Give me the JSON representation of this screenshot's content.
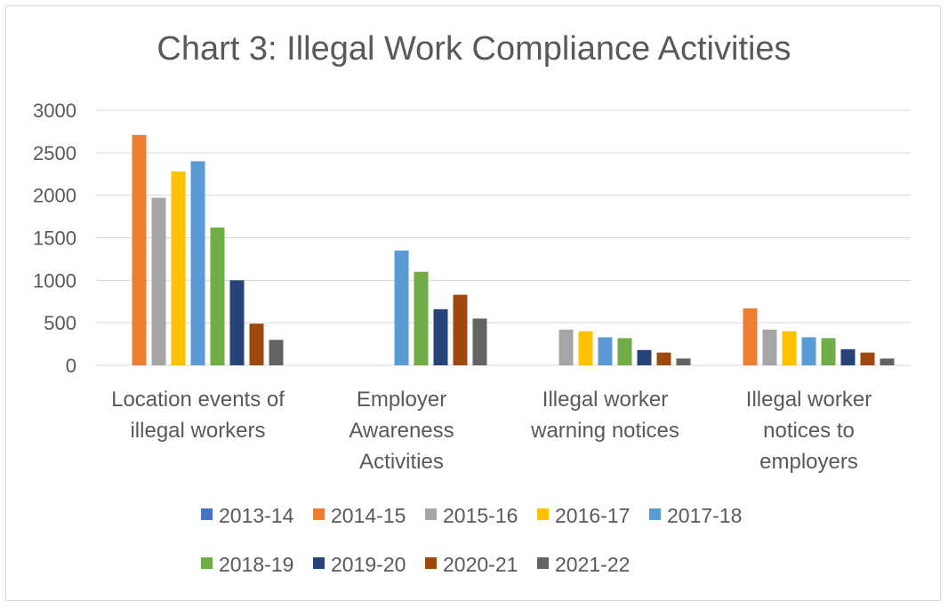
{
  "chart_data": {
    "type": "bar",
    "title": "Chart 3: Illegal Work Compliance Activities",
    "xlabel": "",
    "ylabel": "",
    "ylim": [
      0,
      3000
    ],
    "yticks": [
      0,
      500,
      1000,
      1500,
      2000,
      2500,
      3000
    ],
    "grid": true,
    "legend_position": "bottom",
    "categories": [
      [
        "Location events of",
        "illegal workers"
      ],
      [
        "Employer",
        "Awareness",
        "Activities"
      ],
      [
        "Illegal worker",
        "warning notices"
      ],
      [
        "Illegal worker",
        "notices to",
        "employers"
      ]
    ],
    "series": [
      {
        "name": "2013-14",
        "color": "#4472C4",
        "values": [
          0,
          0,
          0,
          0
        ]
      },
      {
        "name": "2014-15",
        "color": "#ED7D31",
        "values": [
          2710,
          0,
          0,
          670
        ]
      },
      {
        "name": "2015-16",
        "color": "#A5A5A5",
        "values": [
          1970,
          0,
          420,
          420
        ]
      },
      {
        "name": "2016-17",
        "color": "#FFC000",
        "values": [
          2280,
          0,
          400,
          400
        ]
      },
      {
        "name": "2017-18",
        "color": "#5B9BD5",
        "values": [
          2400,
          1350,
          330,
          330
        ]
      },
      {
        "name": "2018-19",
        "color": "#70AD47",
        "values": [
          1620,
          1100,
          320,
          320
        ]
      },
      {
        "name": "2019-20",
        "color": "#264478",
        "values": [
          1000,
          660,
          180,
          190
        ]
      },
      {
        "name": "2020-21",
        "color": "#9E480E",
        "values": [
          490,
          830,
          150,
          150
        ]
      },
      {
        "name": "2021-22",
        "color": "#636363",
        "values": [
          300,
          550,
          80,
          80
        ]
      }
    ]
  }
}
